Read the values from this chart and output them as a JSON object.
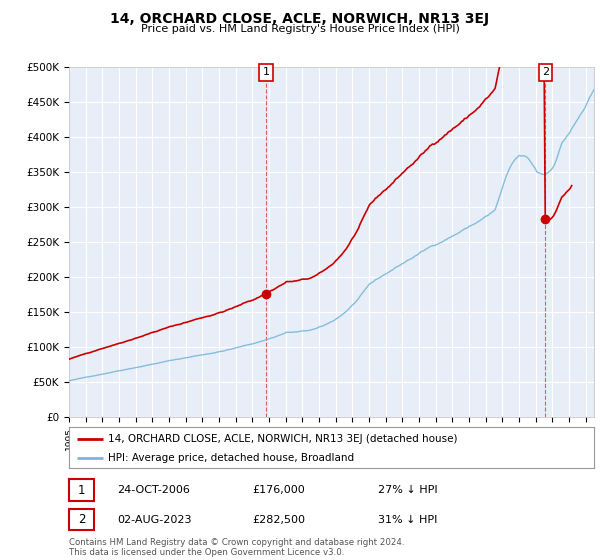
{
  "title": "14, ORCHARD CLOSE, ACLE, NORWICH, NR13 3EJ",
  "subtitle": "Price paid vs. HM Land Registry's House Price Index (HPI)",
  "ylim": [
    0,
    500000
  ],
  "yticks": [
    0,
    50000,
    100000,
    150000,
    200000,
    250000,
    300000,
    350000,
    400000,
    450000,
    500000
  ],
  "ytick_labels": [
    "£0",
    "£50K",
    "£100K",
    "£150K",
    "£200K",
    "£250K",
    "£300K",
    "£350K",
    "£400K",
    "£450K",
    "£500K"
  ],
  "hpi_color": "#7ab8d9",
  "price_color": "#cc0000",
  "sale1_annotation": "24-OCT-2006",
  "sale1_price_str": "£176,000",
  "sale1_hpi_str": "27% ↓ HPI",
  "sale2_annotation": "02-AUG-2023",
  "sale2_price_str": "£282,500",
  "sale2_hpi_str": "31% ↓ HPI",
  "legend_line1": "14, ORCHARD CLOSE, ACLE, NORWICH, NR13 3EJ (detached house)",
  "legend_line2": "HPI: Average price, detached house, Broadland",
  "footer": "Contains HM Land Registry data © Crown copyright and database right 2024.\nThis data is licensed under the Open Government Licence v3.0.",
  "background_color": "#ffffff",
  "plot_bg_color": "#e8eef8",
  "grid_color": "#ffffff",
  "xmin": 1995.0,
  "xmax": 2026.5,
  "sale1_x": 2006.82,
  "sale1_y": 176000,
  "sale2_x": 2023.59,
  "sale2_y": 282500
}
